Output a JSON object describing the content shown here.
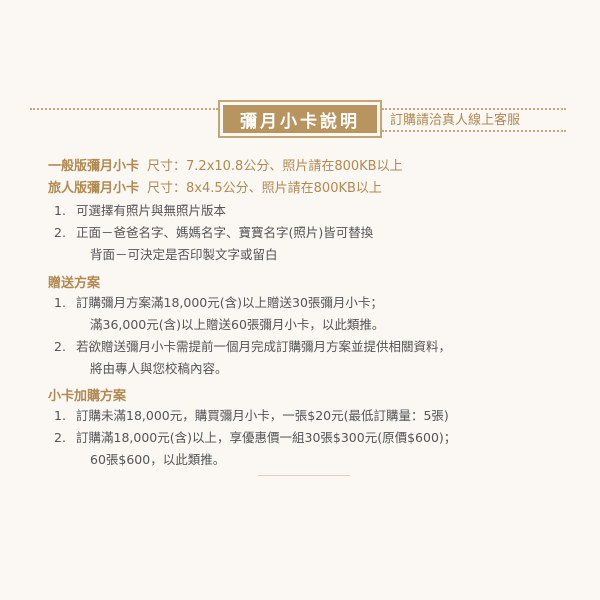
{
  "header": {
    "title": "彌月小卡說明",
    "subtitle": "訂購請洽真人線上客服"
  },
  "specs": [
    {
      "name": "一般版彌月小卡",
      "size": "尺寸：7.2x10.8公分、照片請在800KB以上"
    },
    {
      "name": "旅人版彌月小卡",
      "size": "尺寸：8x4.5公分、照片請在800KB以上"
    }
  ],
  "notes": [
    {
      "num": "1.",
      "lines": [
        "可選擇有照片與無照片版本"
      ]
    },
    {
      "num": "2.",
      "lines": [
        "正面－爸爸名字、媽媽名字、寶寶名字(照片)皆可替換",
        "背面－可決定是否印製文字或留白"
      ]
    }
  ],
  "gift": {
    "title": "贈送方案",
    "items": [
      {
        "num": "1.",
        "lines": [
          "訂購彌月方案滿18,000元(含)以上贈送30張彌月小卡；",
          "滿36,000元(含)以上贈送60張彌月小卡，以此類推。"
        ]
      },
      {
        "num": "2.",
        "lines": [
          "若欲贈送彌月小卡需提前一個月完成訂購彌月方案並提供相關資料，",
          "將由專人與您校稿內容。"
        ]
      }
    ]
  },
  "addon": {
    "title": "小卡加購方案",
    "items": [
      {
        "num": "1.",
        "lines": [
          "訂購未滿18,000元，購買彌月小卡，一張$20元(最低訂購量：5張)"
        ]
      },
      {
        "num": "2.",
        "lines": [
          "訂購滿18,000元(含)以上，享優惠價一組30張$300元(原價$600)；",
          "60張$600，以此類推。"
        ]
      }
    ]
  }
}
